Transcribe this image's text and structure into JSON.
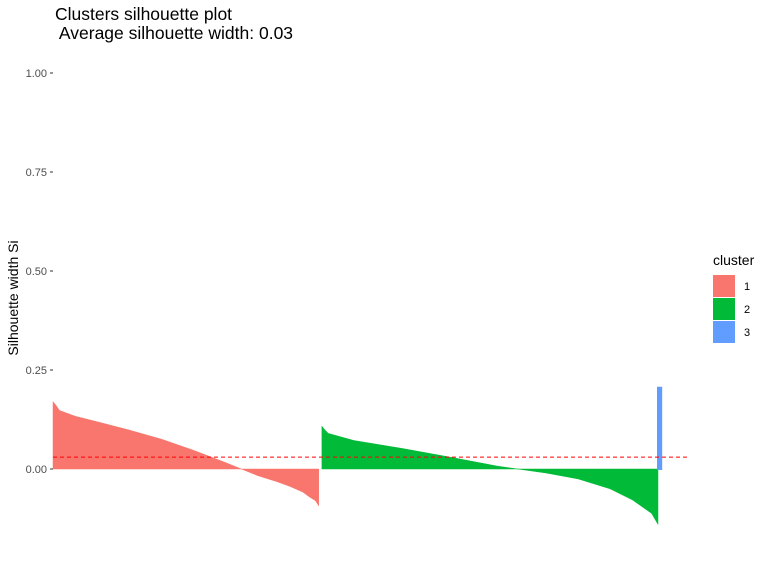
{
  "chart_data": {
    "type": "area",
    "title_lines": [
      "Clusters silhouette plot",
      " Average silhouette width: 0.03"
    ],
    "xlabel": "",
    "ylabel": "Silhouette width Si",
    "ylim": [
      -0.165,
      1.0
    ],
    "yticks": [
      {
        "value": 0.0,
        "label": "0.00"
      },
      {
        "value": 0.25,
        "label": "0.25"
      },
      {
        "value": 0.5,
        "label": "0.50"
      },
      {
        "value": 0.75,
        "label": "0.75"
      },
      {
        "value": 1.0,
        "label": "1.00"
      }
    ],
    "average_silhouette": 0.03,
    "grid": false,
    "legend": {
      "title": "cluster",
      "position": "right"
    },
    "x_count": 200,
    "series": [
      {
        "name": "1",
        "color": "#F8766D",
        "x": [
          1,
          2,
          3,
          8,
          16,
          25,
          35,
          45,
          55,
          65,
          71,
          75,
          79,
          81,
          83,
          84
        ],
        "y": [
          0.17,
          0.16,
          0.148,
          0.133,
          0.117,
          0.098,
          0.075,
          0.047,
          0.016,
          -0.017,
          -0.032,
          -0.044,
          -0.058,
          -0.07,
          -0.08,
          -0.093
        ]
      },
      {
        "name": "2",
        "color": "#00BA38",
        "x": [
          85,
          86,
          87,
          95,
          110,
          125,
          140,
          155,
          165,
          175,
          182,
          188,
          190
        ],
        "y": [
          0.108,
          0.098,
          0.09,
          0.072,
          0.052,
          0.03,
          0.007,
          -0.01,
          -0.025,
          -0.05,
          -0.078,
          -0.112,
          -0.14
        ]
      },
      {
        "name": "3",
        "color": "#619CFF",
        "x": [
          190,
          191
        ],
        "y": [
          0.205,
          0.205
        ]
      }
    ]
  }
}
